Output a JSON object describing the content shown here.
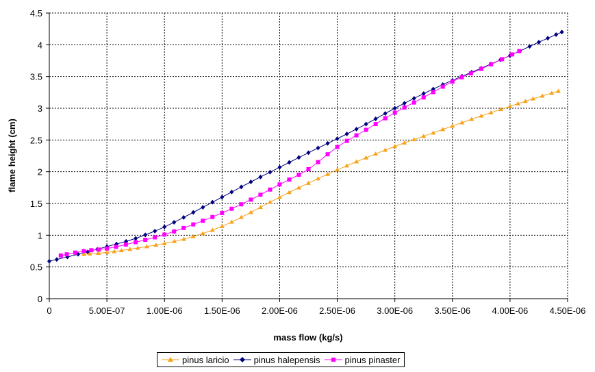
{
  "chart_data": {
    "type": "line",
    "title": "",
    "xlabel": "mass flow (kg/s)",
    "ylabel": "flame height (cm)",
    "xlim": [
      0,
      4.5e-06
    ],
    "ylim": [
      0,
      4.5
    ],
    "x_ticks": [
      "0",
      "5.00E-07",
      "1.00E-06",
      "1.50E-06",
      "2.00E-06",
      "2.50E-06",
      "3.00E-06",
      "3.50E-06",
      "4.00E-06",
      "4.50E-06"
    ],
    "y_ticks": [
      "0",
      "0.5",
      "1",
      "1.5",
      "2",
      "2.5",
      "3",
      "3.5",
      "4",
      "4.5"
    ],
    "grid": true,
    "legend_position": "bottom",
    "series": [
      {
        "name": "pinus laricio",
        "color": "#F7A21B",
        "marker": "triangle",
        "x": [
          3e-07,
          5e-07,
          7e-07,
          1e-06,
          1.25e-06,
          1.5e-06,
          1.75e-06,
          2e-06,
          2.25e-06,
          2.5e-06,
          2.75e-06,
          3e-06,
          3.25e-06,
          3.5e-06,
          3.75e-06,
          4e-06,
          4.2e-06,
          4.42e-06
        ],
        "y": [
          0.7,
          0.73,
          0.78,
          0.87,
          0.98,
          1.14,
          1.36,
          1.6,
          1.82,
          2.03,
          2.22,
          2.4,
          2.56,
          2.72,
          2.88,
          3.03,
          3.15,
          3.27
        ]
      },
      {
        "name": "pinus halepensis",
        "color": "#000080",
        "marker": "diamond",
        "x": [
          0,
          2.5e-07,
          5e-07,
          7.5e-07,
          1e-06,
          1.25e-06,
          1.5e-06,
          1.75e-06,
          2e-06,
          2.25e-06,
          2.5e-06,
          2.75e-06,
          3e-06,
          3.25e-06,
          3.5e-06,
          3.75e-06,
          4e-06,
          4.25e-06,
          4.45e-06
        ],
        "y": [
          0.59,
          0.7,
          0.82,
          0.95,
          1.13,
          1.36,
          1.6,
          1.84,
          2.07,
          2.3,
          2.52,
          2.75,
          3.0,
          3.23,
          3.44,
          3.63,
          3.83,
          4.04,
          4.2
        ]
      },
      {
        "name": "pinus pinaster",
        "color": "#FF00FF",
        "marker": "square",
        "x": [
          1e-07,
          3e-07,
          5e-07,
          7.5e-07,
          1e-06,
          1.25e-06,
          1.5e-06,
          1.75e-06,
          2e-06,
          2.25e-06,
          2.5e-06,
          2.75e-06,
          3e-06,
          3.25e-06,
          3.5e-06,
          3.75e-06,
          4.08e-06
        ],
        "y": [
          0.68,
          0.75,
          0.79,
          0.89,
          1.01,
          1.17,
          1.35,
          1.56,
          1.8,
          2.04,
          2.39,
          2.66,
          2.93,
          3.17,
          3.42,
          3.62,
          3.9
        ]
      }
    ]
  }
}
